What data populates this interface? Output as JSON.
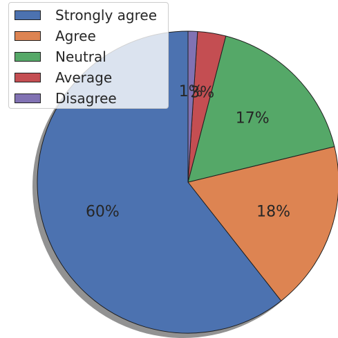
{
  "chart_data": {
    "type": "pie",
    "title": "",
    "slices": [
      {
        "label": "Strongly agree",
        "value": 60,
        "pct_label": "60%",
        "color": "#4c72b0"
      },
      {
        "label": "Agree",
        "value": 18,
        "pct_label": "18%",
        "color": "#dd8452"
      },
      {
        "label": "Neutral",
        "value": 17,
        "pct_label": "17%",
        "color": "#55a868"
      },
      {
        "label": "Average",
        "value": 3,
        "pct_label": "3%",
        "color": "#c44e52"
      },
      {
        "label": "Disagree",
        "value": 1,
        "pct_label": "1%",
        "color": "#8172b3"
      }
    ],
    "shadow": true,
    "legend_position": "top-left",
    "edge_color": "#1f1f1f"
  }
}
